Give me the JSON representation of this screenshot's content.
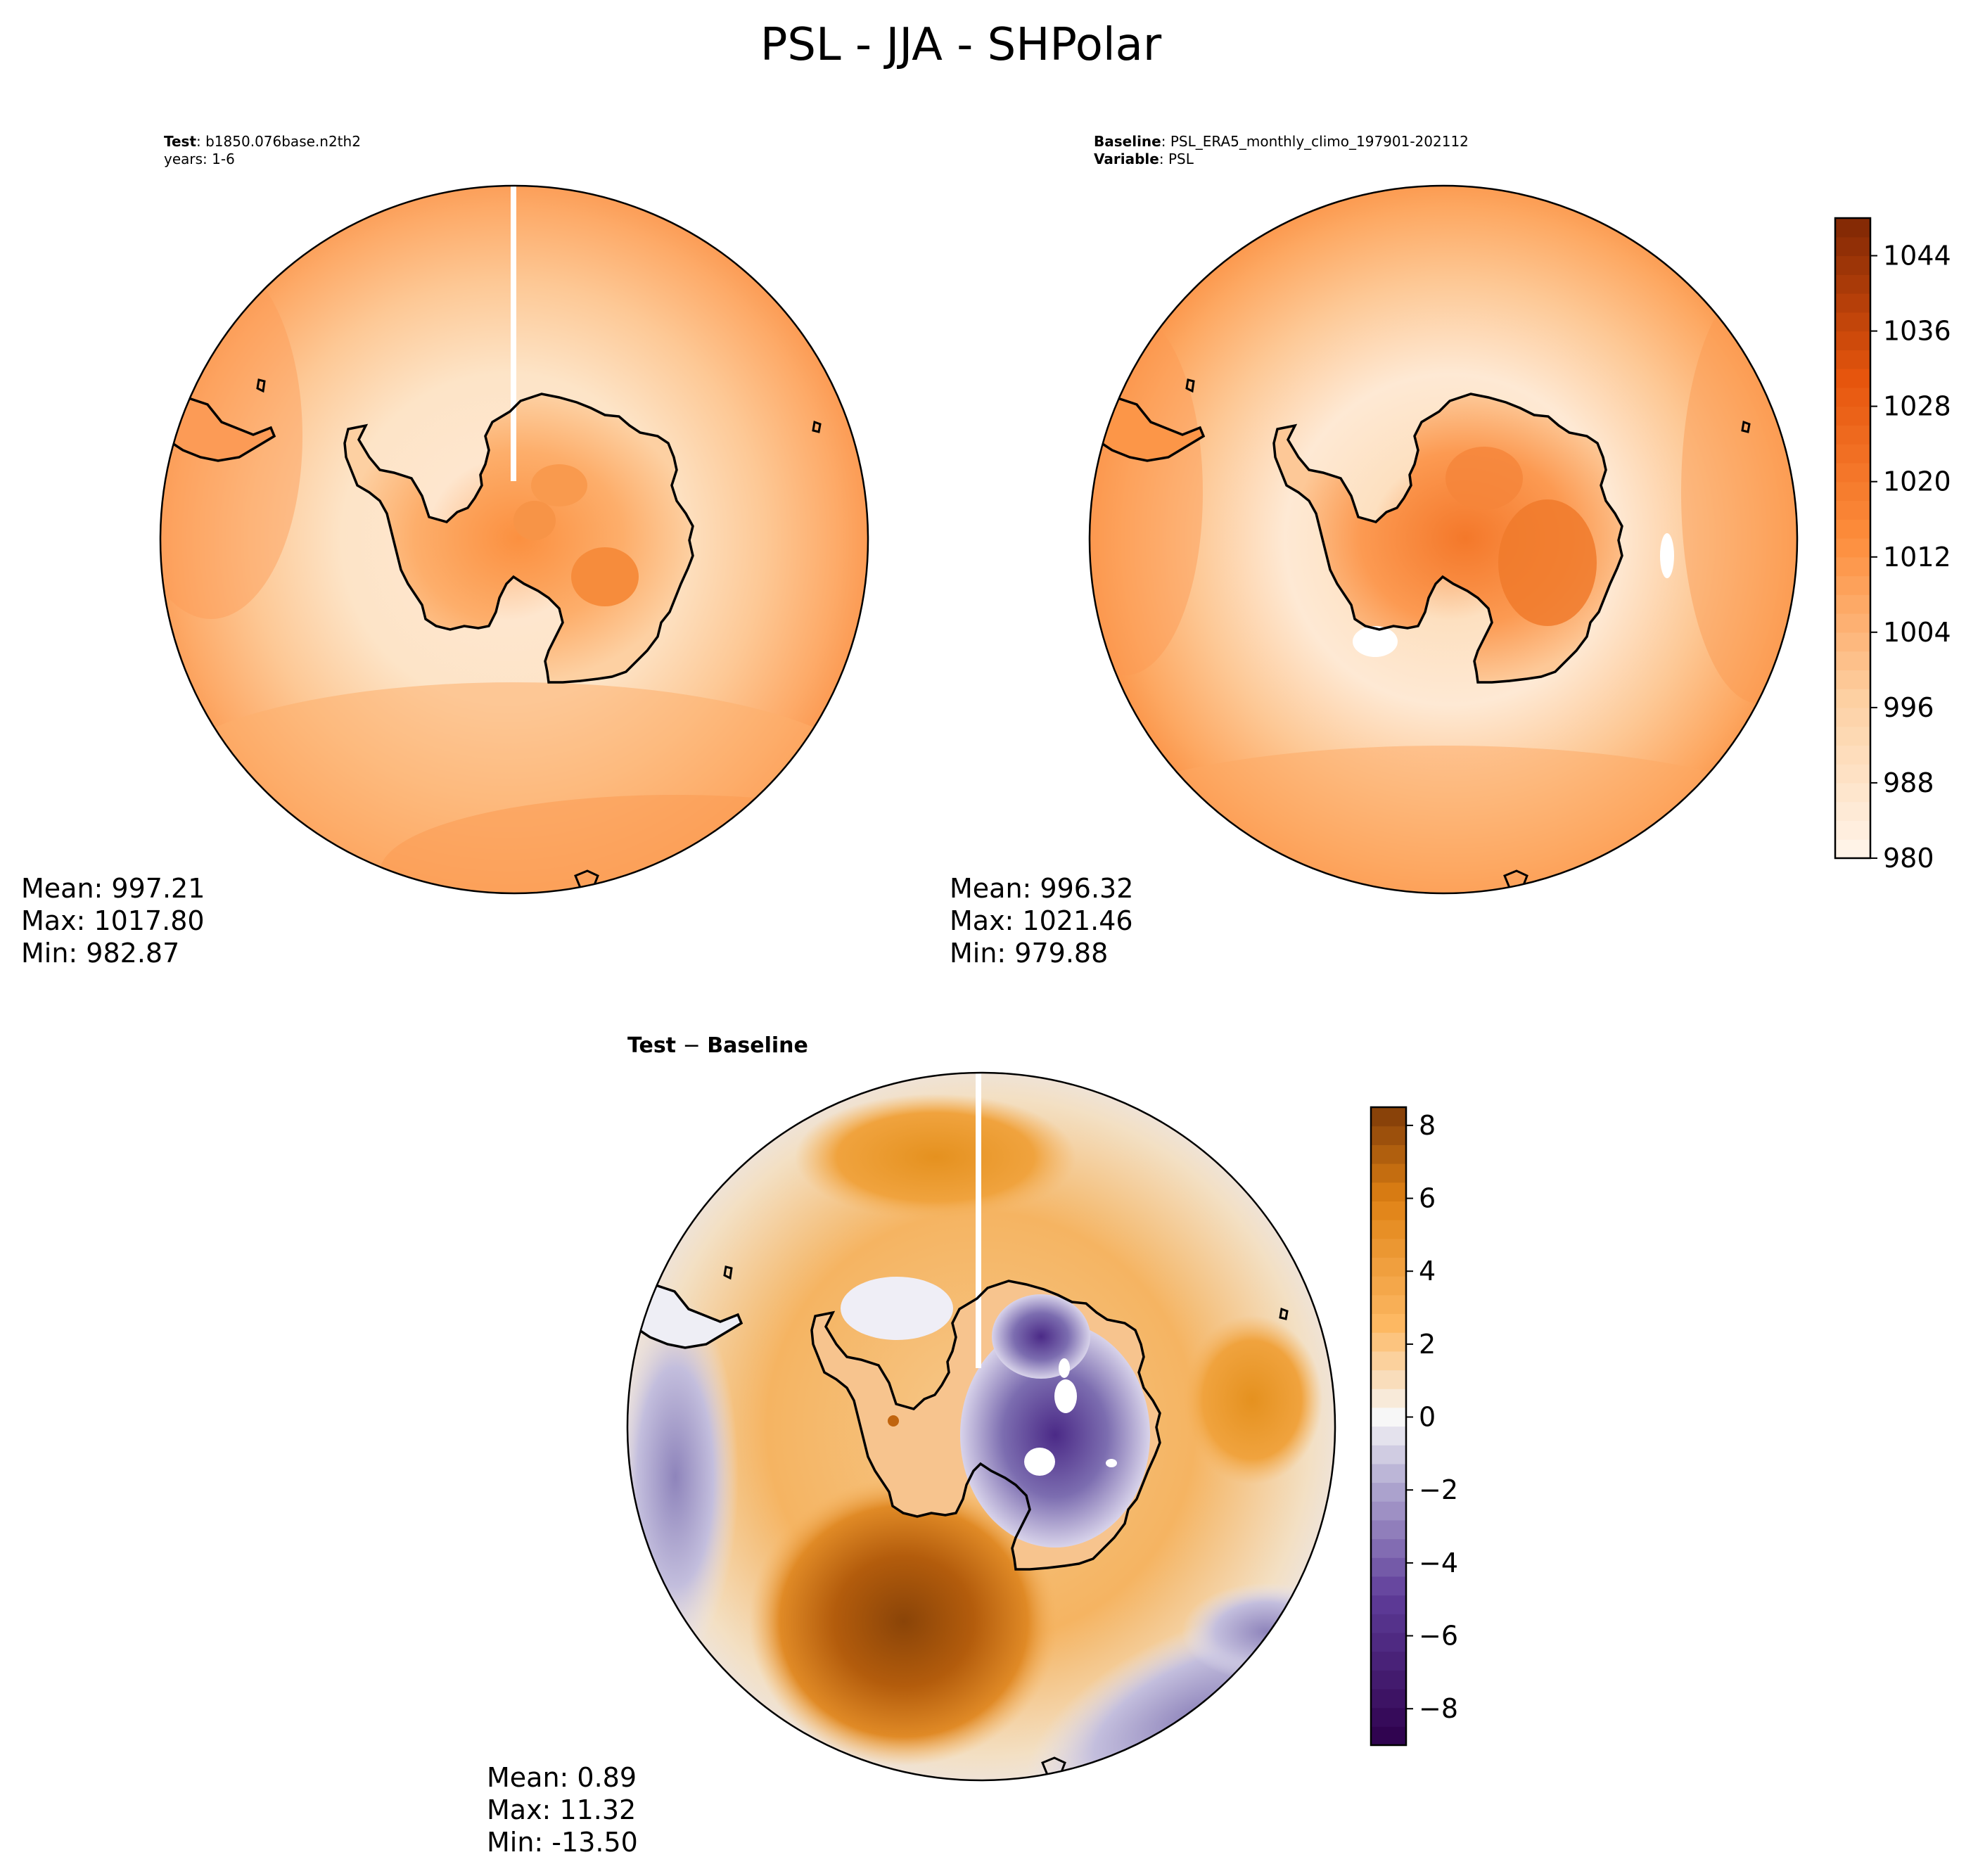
{
  "figure": {
    "title": "PSL - JJA - SHPolar"
  },
  "panels": {
    "test": {
      "label_bold": "Test",
      "label_value": ": b1850.076base.n2th2",
      "years": "years: 1-6",
      "mean": "Mean: 997.21",
      "max": "Max: 1017.80",
      "min": "Min: 982.87"
    },
    "baseline": {
      "label_bold": "Baseline",
      "label_value": ": PSL_ERA5_monthly_climo_197901-202112",
      "variable_bold": "Variable",
      "variable_value": ": PSL",
      "mean": "Mean: 996.32",
      "max": "Max: 1021.46",
      "min": "Min: 979.88"
    },
    "diff": {
      "title_test": "Test",
      "title_sep": " − ",
      "title_base": "Baseline",
      "mean": "Mean:  0.89",
      "max": "Max: 11.32",
      "min": "Min: -13.50"
    }
  },
  "colorbars": {
    "psl": {
      "colormap": "Oranges",
      "range": [
        980,
        1048
      ],
      "ticks": [
        "1044",
        "1036",
        "1028",
        "1020",
        "1012",
        "1004",
        "996",
        "988",
        "980"
      ]
    },
    "diff": {
      "colormap": "PuOr_r",
      "range": [
        -9,
        8.5
      ],
      "ticks": [
        "8",
        "6",
        "4",
        "2",
        "0",
        "−2",
        "−4",
        "−6",
        "−8"
      ]
    }
  },
  "colors": {
    "oranges_low": "#fff5eb",
    "oranges_mid": "#fd8d3c",
    "oranges_high": "#7f2704",
    "diff_pos": "#7f3b08",
    "diff_zero": "#f7f7f7",
    "diff_neg": "#2d004b"
  }
}
